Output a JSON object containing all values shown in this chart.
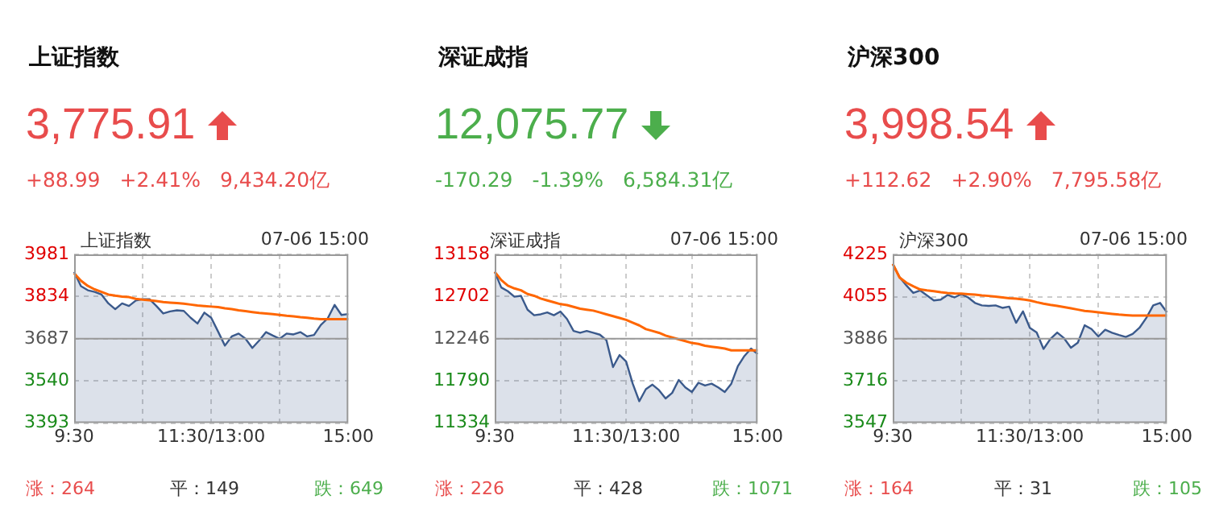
{
  "chart_data": [
    {
      "type": "line",
      "title": "上证指数",
      "annotations": [
        "3,775.91",
        "+88.99",
        "+2.41%",
        "9,434.20亿",
        "上证指数",
        "07-06 15:00",
        "涨：264",
        "平：149",
        "跌：649"
      ],
      "categories": [
        "9:30",
        null,
        null,
        null,
        null,
        null,
        null,
        null,
        null,
        null,
        null,
        null,
        null,
        null,
        null,
        null,
        null,
        null,
        null,
        null,
        "11:30/13:00",
        null,
        null,
        null,
        null,
        null,
        null,
        null,
        null,
        null,
        null,
        null,
        null,
        null,
        null,
        null,
        null,
        null,
        null,
        null,
        "15:00"
      ],
      "ylim": [
        3393,
        3981
      ],
      "yticks": [
        3393,
        3540,
        3687,
        3834,
        3981
      ],
      "grid": true,
      "legend": false,
      "marker": "none",
      "ref_lines": [
        {
          "axis": "y",
          "value": 3687,
          "color": "#999999"
        }
      ],
      "series": [
        {
          "type": "area",
          "color": "#3b5a8c",
          "values": [
            3920,
            3870,
            3856,
            3850,
            3841,
            3810,
            3790,
            3810,
            3801,
            3820,
            3825,
            3825,
            3801,
            3775,
            3782,
            3786,
            3784,
            3760,
            3740,
            3778,
            3760,
            3712,
            3663,
            3695,
            3705,
            3687,
            3655,
            3681,
            3710,
            3698,
            3687,
            3705,
            3702,
            3710,
            3695,
            3700,
            3735,
            3758,
            3805,
            3770,
            3773
          ]
        },
        {
          "type": "line",
          "color": "#ff6600",
          "values": [
            3915,
            3889,
            3871,
            3859,
            3850,
            3841,
            3837,
            3834,
            3832,
            3826,
            3823,
            3821,
            3818,
            3815,
            3813,
            3811,
            3809,
            3806,
            3803,
            3801,
            3799,
            3797,
            3793,
            3790,
            3786,
            3783,
            3780,
            3777,
            3775,
            3773,
            3770,
            3767,
            3765,
            3762,
            3760,
            3757,
            3755,
            3755,
            3755,
            3755,
            3755
          ]
        }
      ]
    },
    {
      "type": "line",
      "title": "深证成指",
      "annotations": [
        "12,075.77",
        "-170.29",
        "-1.39%",
        "6,584.31亿",
        "深证成指",
        "07-06 15:00",
        "涨：226",
        "平：428",
        "跌：1071"
      ],
      "categories": [
        "9:30",
        null,
        null,
        null,
        null,
        null,
        null,
        null,
        null,
        null,
        null,
        null,
        null,
        null,
        null,
        null,
        null,
        null,
        null,
        null,
        "11:30/13:00",
        null,
        null,
        null,
        null,
        null,
        null,
        null,
        null,
        null,
        null,
        null,
        null,
        null,
        null,
        null,
        null,
        null,
        null,
        null,
        "15:00"
      ],
      "ylim": [
        11334,
        13158
      ],
      "yticks": [
        11334,
        11790,
        12246,
        12702,
        13158
      ],
      "grid": true,
      "legend": false,
      "marker": "none",
      "ref_lines": [
        {
          "axis": "y",
          "value": 12246,
          "color": "#999999"
        }
      ],
      "series": [
        {
          "type": "area",
          "color": "#3b5a8c",
          "values": [
            12970,
            12800,
            12760,
            12700,
            12710,
            12560,
            12500,
            12510,
            12530,
            12500,
            12540,
            12460,
            12330,
            12310,
            12330,
            12310,
            12290,
            12230,
            11940,
            12070,
            12000,
            11760,
            11570,
            11700,
            11750,
            11690,
            11600,
            11660,
            11800,
            11720,
            11670,
            11770,
            11740,
            11760,
            11720,
            11670,
            11760,
            11950,
            12060,
            12140,
            12080
          ]
        },
        {
          "type": "line",
          "color": "#ff6600",
          "values": [
            12970,
            12880,
            12820,
            12790,
            12770,
            12730,
            12710,
            12680,
            12660,
            12640,
            12620,
            12610,
            12590,
            12570,
            12560,
            12550,
            12530,
            12510,
            12490,
            12470,
            12450,
            12420,
            12390,
            12350,
            12330,
            12310,
            12280,
            12260,
            12240,
            12220,
            12200,
            12190,
            12170,
            12160,
            12150,
            12140,
            12120,
            12120,
            12120,
            12120,
            12120
          ]
        }
      ]
    },
    {
      "type": "line",
      "title": "沪深300",
      "annotations": [
        "3,998.54",
        "+112.62",
        "+2.90%",
        "7,795.58亿",
        "沪深300",
        "07-06 15:00",
        "涨：164",
        "平：31",
        "跌：105"
      ],
      "categories": [
        "9:30",
        null,
        null,
        null,
        null,
        null,
        null,
        null,
        null,
        null,
        null,
        null,
        null,
        null,
        null,
        null,
        null,
        null,
        null,
        null,
        "11:30/13:00",
        null,
        null,
        null,
        null,
        null,
        null,
        null,
        null,
        null,
        null,
        null,
        null,
        null,
        null,
        null,
        null,
        null,
        null,
        null,
        "15:00"
      ],
      "ylim": [
        3547,
        4225
      ],
      "yticks": [
        3547,
        3716,
        3886,
        4055,
        4225
      ],
      "grid": true,
      "legend": false,
      "marker": "none",
      "ref_lines": [
        {
          "axis": "y",
          "value": 3886,
          "color": "#999999"
        }
      ],
      "series": [
        {
          "type": "area",
          "color": "#3b5a8c",
          "values": [
            4187,
            4134,
            4100,
            4070,
            4080,
            4060,
            4040,
            4043,
            4062,
            4052,
            4065,
            4052,
            4030,
            4020,
            4018,
            4020,
            4010,
            4015,
            3950,
            3996,
            3930,
            3911,
            3845,
            3885,
            3911,
            3888,
            3850,
            3870,
            3940,
            3925,
            3895,
            3922,
            3910,
            3901,
            3893,
            3905,
            3930,
            3970,
            4020,
            4030,
            3992
          ]
        },
        {
          "type": "line",
          "color": "#ff6600",
          "values": [
            4187,
            4132,
            4111,
            4097,
            4084,
            4080,
            4077,
            4073,
            4070,
            4068,
            4067,
            4065,
            4063,
            4060,
            4058,
            4055,
            4052,
            4049,
            4047,
            4044,
            4040,
            4033,
            4027,
            4022,
            4018,
            4013,
            4008,
            4003,
            3998,
            3995,
            3992,
            3989,
            3986,
            3983,
            3981,
            3979,
            3979,
            3979,
            3979,
            3979,
            3979
          ]
        }
      ]
    }
  ]
}
